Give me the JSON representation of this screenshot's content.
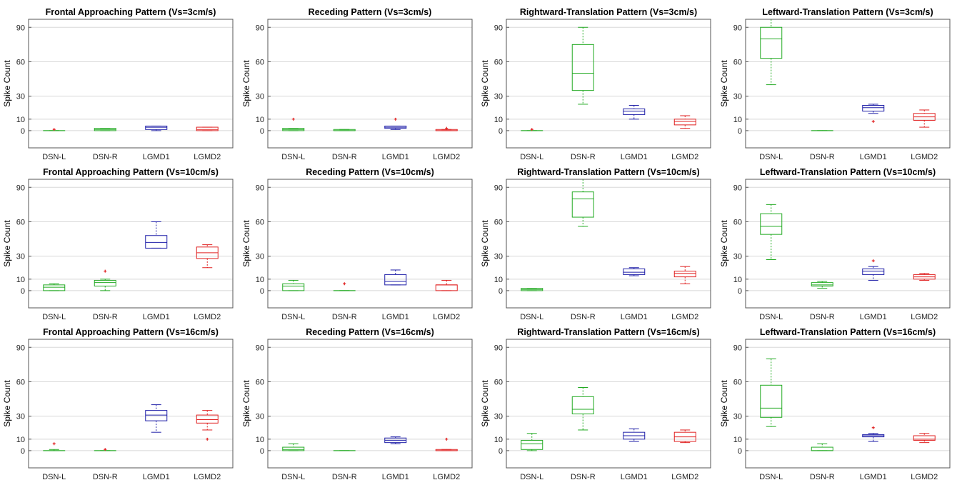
{
  "colors": {
    "DSN-L": "#22aa22",
    "DSN-R": "#22aa22",
    "LGMD1": "#1f1fa8",
    "LGMD2": "#e02020",
    "grid": "#d8d8d8",
    "axis": "#555555"
  },
  "chart_data": [
    {
      "type": "box",
      "title": "Frontal Approaching Pattern (Vs=3cm/s)",
      "ylabel": "Spike Count",
      "ylim": [
        -15,
        97
      ],
      "yticks": [
        0,
        10,
        30,
        60,
        90
      ],
      "categories": [
        "DSN-L",
        "DSN-R",
        "LGMD1",
        "LGMD2"
      ],
      "boxes": [
        {
          "min": 0,
          "q1": 0,
          "med": 0,
          "q3": 0,
          "max": 0,
          "outliers": [
            1
          ]
        },
        {
          "min": 0,
          "q1": 0,
          "med": 1,
          "q3": 2,
          "max": 2,
          "outliers": []
        },
        {
          "min": 0,
          "q1": 1,
          "med": 3,
          "q3": 4,
          "max": 4,
          "outliers": []
        },
        {
          "min": 0,
          "q1": 0,
          "med": 1,
          "q3": 3,
          "max": 3,
          "outliers": []
        }
      ]
    },
    {
      "type": "box",
      "title": "Receding Pattern (Vs=3cm/s)",
      "ylabel": "Spike Count",
      "ylim": [
        -15,
        97
      ],
      "yticks": [
        0,
        10,
        30,
        60,
        90
      ],
      "categories": [
        "DSN-L",
        "DSN-R",
        "LGMD1",
        "LGMD2"
      ],
      "boxes": [
        {
          "min": 0,
          "q1": 0,
          "med": 1,
          "q3": 2,
          "max": 2,
          "outliers": [
            10
          ]
        },
        {
          "min": 0,
          "q1": 0,
          "med": 0,
          "q3": 1,
          "max": 1,
          "outliers": []
        },
        {
          "min": 1,
          "q1": 2,
          "med": 3,
          "q3": 4,
          "max": 4,
          "outliers": [
            10
          ]
        },
        {
          "min": 0,
          "q1": 0,
          "med": 0,
          "q3": 1,
          "max": 1,
          "outliers": [
            2
          ]
        }
      ]
    },
    {
      "type": "box",
      "title": "Rightward-Translation Pattern (Vs=3cm/s)",
      "ylabel": "Spike Count",
      "ylim": [
        -15,
        97
      ],
      "yticks": [
        0,
        10,
        30,
        60,
        90
      ],
      "categories": [
        "DSN-L",
        "DSN-R",
        "LGMD1",
        "LGMD2"
      ],
      "boxes": [
        {
          "min": 0,
          "q1": 0,
          "med": 0,
          "q3": 0,
          "max": 0,
          "outliers": [
            1
          ]
        },
        {
          "min": 23,
          "q1": 35,
          "med": 50,
          "q3": 75,
          "max": 90,
          "outliers": []
        },
        {
          "min": 10,
          "q1": 14,
          "med": 17,
          "q3": 19,
          "max": 22,
          "outliers": []
        },
        {
          "min": 2,
          "q1": 5,
          "med": 8,
          "q3": 10,
          "max": 13,
          "outliers": []
        }
      ]
    },
    {
      "type": "box",
      "title": "Leftward-Translation Pattern (Vs=3cm/s)",
      "ylabel": "Spike Count",
      "ylim": [
        -15,
        97
      ],
      "yticks": [
        0,
        10,
        30,
        60,
        90
      ],
      "categories": [
        "DSN-L",
        "DSN-R",
        "LGMD1",
        "LGMD2"
      ],
      "boxes": [
        {
          "min": 40,
          "q1": 63,
          "med": 80,
          "q3": 90,
          "max": 100,
          "outliers": []
        },
        {
          "min": 0,
          "q1": 0,
          "med": 0,
          "q3": 0,
          "max": 0,
          "outliers": []
        },
        {
          "min": 15,
          "q1": 17,
          "med": 20,
          "q3": 22,
          "max": 23,
          "outliers": [
            8
          ]
        },
        {
          "min": 3,
          "q1": 9,
          "med": 12,
          "q3": 15,
          "max": 18,
          "outliers": []
        }
      ]
    },
    {
      "type": "box",
      "title": "Frontal Approaching Pattern (Vs=10cm/s)",
      "ylabel": "Spike Count",
      "ylim": [
        -15,
        97
      ],
      "yticks": [
        0,
        10,
        30,
        60,
        90
      ],
      "categories": [
        "DSN-L",
        "DSN-R",
        "LGMD1",
        "LGMD2"
      ],
      "boxes": [
        {
          "min": 0,
          "q1": 0,
          "med": 3,
          "q3": 5,
          "max": 6,
          "outliers": []
        },
        {
          "min": 0,
          "q1": 4,
          "med": 7,
          "q3": 9,
          "max": 10,
          "outliers": [
            17
          ]
        },
        {
          "min": 37,
          "q1": 37,
          "med": 42,
          "q3": 48,
          "max": 60,
          "outliers": []
        },
        {
          "min": 20,
          "q1": 28,
          "med": 33,
          "q3": 38,
          "max": 40,
          "outliers": []
        }
      ]
    },
    {
      "type": "box",
      "title": "Receding Pattern (Vs=10cm/s)",
      "ylabel": "Spike Count",
      "ylim": [
        -15,
        97
      ],
      "yticks": [
        0,
        10,
        30,
        60,
        90
      ],
      "categories": [
        "DSN-L",
        "DSN-R",
        "LGMD1",
        "LGMD2"
      ],
      "boxes": [
        {
          "min": 0,
          "q1": 0,
          "med": 4,
          "q3": 6,
          "max": 9,
          "outliers": []
        },
        {
          "min": 0,
          "q1": 0,
          "med": 0,
          "q3": 0,
          "max": 0,
          "outliers": [
            6
          ]
        },
        {
          "min": 5,
          "q1": 5,
          "med": 8,
          "q3": 14,
          "max": 18,
          "outliers": []
        },
        {
          "min": 0,
          "q1": 0,
          "med": 5,
          "q3": 5,
          "max": 9,
          "outliers": []
        }
      ]
    },
    {
      "type": "box",
      "title": "Rightward-Translation Pattern (Vs=10cm/s)",
      "ylabel": "Spike Count",
      "ylim": [
        -15,
        97
      ],
      "yticks": [
        0,
        10,
        30,
        60,
        90
      ],
      "categories": [
        "DSN-L",
        "DSN-R",
        "LGMD1",
        "LGMD2"
      ],
      "boxes": [
        {
          "min": 0,
          "q1": 0,
          "med": 1,
          "q3": 2,
          "max": 2,
          "outliers": []
        },
        {
          "min": 56,
          "q1": 64,
          "med": 80,
          "q3": 86,
          "max": 100,
          "outliers": []
        },
        {
          "min": 13,
          "q1": 14,
          "med": 16,
          "q3": 19,
          "max": 20,
          "outliers": []
        },
        {
          "min": 6,
          "q1": 12,
          "med": 15,
          "q3": 17,
          "max": 21,
          "outliers": []
        }
      ]
    },
    {
      "type": "box",
      "title": "Leftward-Translation Pattern (Vs=10cm/s)",
      "ylabel": "Spike Count",
      "ylim": [
        -15,
        97
      ],
      "yticks": [
        0,
        10,
        30,
        60,
        90
      ],
      "categories": [
        "DSN-L",
        "DSN-R",
        "LGMD1",
        "LGMD2"
      ],
      "boxes": [
        {
          "min": 27,
          "q1": 49,
          "med": 56,
          "q3": 67,
          "max": 75,
          "outliers": []
        },
        {
          "min": 2,
          "q1": 4,
          "med": 5,
          "q3": 7,
          "max": 8,
          "outliers": []
        },
        {
          "min": 9,
          "q1": 14,
          "med": 17,
          "q3": 19,
          "max": 21,
          "outliers": [
            26
          ]
        },
        {
          "min": 9,
          "q1": 10,
          "med": 12,
          "q3": 14,
          "max": 15,
          "outliers": []
        }
      ]
    },
    {
      "type": "box",
      "title": "Frontal Approaching Pattern (Vs=16cm/s)",
      "ylabel": "Spike Count",
      "ylim": [
        -15,
        97
      ],
      "yticks": [
        0,
        10,
        30,
        60,
        90
      ],
      "categories": [
        "DSN-L",
        "DSN-R",
        "LGMD1",
        "LGMD2"
      ],
      "boxes": [
        {
          "min": 0,
          "q1": 0,
          "med": 0,
          "q3": 0,
          "max": 1,
          "outliers": [
            6
          ]
        },
        {
          "min": 0,
          "q1": 0,
          "med": 0,
          "q3": 0,
          "max": 0,
          "outliers": [
            1
          ]
        },
        {
          "min": 16,
          "q1": 26,
          "med": 31,
          "q3": 35,
          "max": 40,
          "outliers": []
        },
        {
          "min": 18,
          "q1": 24,
          "med": 27,
          "q3": 31,
          "max": 35,
          "outliers": [
            10
          ]
        }
      ]
    },
    {
      "type": "box",
      "title": "Receding Pattern (Vs=16cm/s)",
      "ylabel": "Spike Count",
      "ylim": [
        -15,
        97
      ],
      "yticks": [
        0,
        10,
        30,
        60,
        90
      ],
      "categories": [
        "DSN-L",
        "DSN-R",
        "LGMD1",
        "LGMD2"
      ],
      "boxes": [
        {
          "min": 0,
          "q1": 0,
          "med": 1,
          "q3": 3,
          "max": 6,
          "outliers": []
        },
        {
          "min": 0,
          "q1": 0,
          "med": 0,
          "q3": 0,
          "max": 0,
          "outliers": []
        },
        {
          "min": 6,
          "q1": 7,
          "med": 9,
          "q3": 11,
          "max": 12,
          "outliers": []
        },
        {
          "min": 0,
          "q1": 0,
          "med": 0,
          "q3": 1,
          "max": 1,
          "outliers": [
            10
          ]
        }
      ]
    },
    {
      "type": "box",
      "title": "Rightward-Translation Pattern (Vs=16cm/s)",
      "ylabel": "Spike Count",
      "ylim": [
        -15,
        97
      ],
      "yticks": [
        0,
        10,
        30,
        60,
        90
      ],
      "categories": [
        "DSN-L",
        "DSN-R",
        "LGMD1",
        "LGMD2"
      ],
      "boxes": [
        {
          "min": 0,
          "q1": 1,
          "med": 6,
          "q3": 9,
          "max": 15,
          "outliers": []
        },
        {
          "min": 18,
          "q1": 32,
          "med": 36,
          "q3": 47,
          "max": 55,
          "outliers": []
        },
        {
          "min": 8,
          "q1": 10,
          "med": 13,
          "q3": 16,
          "max": 19,
          "outliers": []
        },
        {
          "min": 7,
          "q1": 8,
          "med": 12,
          "q3": 16,
          "max": 18,
          "outliers": []
        }
      ]
    },
    {
      "type": "box",
      "title": "Leftward-Translation Pattern (Vs=16cm/s)",
      "ylabel": "Spike Count",
      "ylim": [
        -15,
        97
      ],
      "yticks": [
        0,
        10,
        30,
        60,
        90
      ],
      "categories": [
        "DSN-L",
        "DSN-R",
        "LGMD1",
        "LGMD2"
      ],
      "boxes": [
        {
          "min": 21,
          "q1": 29,
          "med": 37,
          "q3": 57,
          "max": 80,
          "outliers": []
        },
        {
          "min": 0,
          "q1": 0,
          "med": 0,
          "q3": 3,
          "max": 6,
          "outliers": []
        },
        {
          "min": 8,
          "q1": 12,
          "med": 13,
          "q3": 14,
          "max": 15,
          "outliers": [
            20
          ]
        },
        {
          "min": 7,
          "q1": 9,
          "med": 10,
          "q3": 13,
          "max": 15,
          "outliers": []
        }
      ]
    }
  ]
}
